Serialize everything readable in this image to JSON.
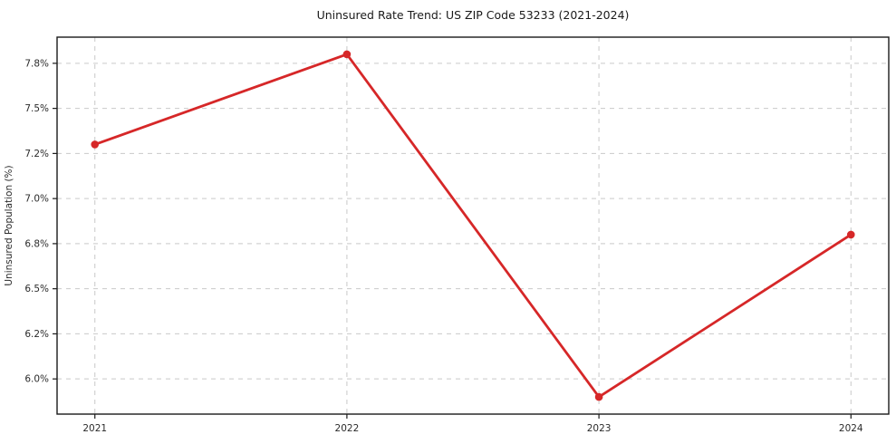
{
  "chart_data": {
    "type": "line",
    "title": "Uninsured Rate Trend: US ZIP Code 53233 (2021-2024)",
    "xlabel": "",
    "ylabel": "Uninsured Population (%)",
    "x": [
      2021,
      2022,
      2023,
      2024
    ],
    "values": [
      7.3,
      7.8,
      5.9,
      6.8
    ],
    "x_tick_labels": [
      "2021",
      "2022",
      "2023",
      "2024"
    ],
    "y_ticks": [
      {
        "value": 6.0,
        "label": "6.0%"
      },
      {
        "value": 6.25,
        "label": "6.2%"
      },
      {
        "value": 6.5,
        "label": "6.5%"
      },
      {
        "value": 6.75,
        "label": "6.8%"
      },
      {
        "value": 7.0,
        "label": "7.0%"
      },
      {
        "value": 7.25,
        "label": "7.2%"
      },
      {
        "value": 7.5,
        "label": "7.5%"
      },
      {
        "value": 7.75,
        "label": "7.8%"
      }
    ],
    "xlim": [
      2020.85,
      2024.15
    ],
    "ylim": [
      5.805,
      7.895
    ],
    "grid": true,
    "grid_style": "dashed",
    "legend": "none",
    "colors": {
      "line": "#d62728",
      "marker": "#d62728",
      "grid": "#c9c9c9",
      "spine": "#1a1a1a",
      "title_text": "#1a1a1a",
      "tick_text": "#2b2b2b",
      "background": "#ffffff"
    }
  }
}
